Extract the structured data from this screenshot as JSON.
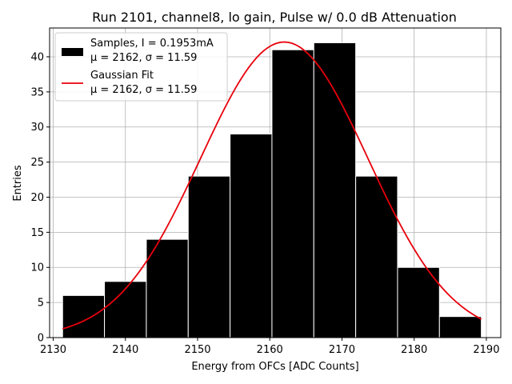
{
  "chart_data": {
    "type": "bar",
    "title": "Run 2101, channel8, lo gain, Pulse w/ 0.0 dB Attenuation",
    "xlabel": "Energy from OFCs [ADC Counts]",
    "ylabel": "Entries",
    "xlim": [
      2129.5,
      2192.0
    ],
    "ylim": [
      0,
      44.1
    ],
    "grid": true,
    "legend_position": "upper-left",
    "xticks": [
      2130,
      2140,
      2150,
      2160,
      2170,
      2180,
      2190
    ],
    "yticks": [
      0,
      5,
      10,
      15,
      20,
      25,
      30,
      35,
      40
    ],
    "bin_edges": [
      2131.3,
      2137.1,
      2142.9,
      2148.7,
      2154.5,
      2160.3,
      2166.1,
      2171.9,
      2177.7,
      2183.5,
      2189.3
    ],
    "values": [
      6,
      8,
      14,
      23,
      29,
      41,
      42,
      23,
      10,
      3
    ],
    "series": [
      {
        "name": "Samples, I = 0.1953mA",
        "stats_label": "μ = 2162, σ = 11.59",
        "kind": "histogram",
        "color": "#000000",
        "edge_color": "#ffffff"
      },
      {
        "name": "Gaussian Fit",
        "stats_label": "μ = 2162, σ = 11.59",
        "kind": "line",
        "color": "#e8000b",
        "mu": 2162,
        "sigma": 11.59,
        "amplitude": 42.1,
        "x_range": [
          2131.3,
          2189.3
        ]
      }
    ]
  }
}
